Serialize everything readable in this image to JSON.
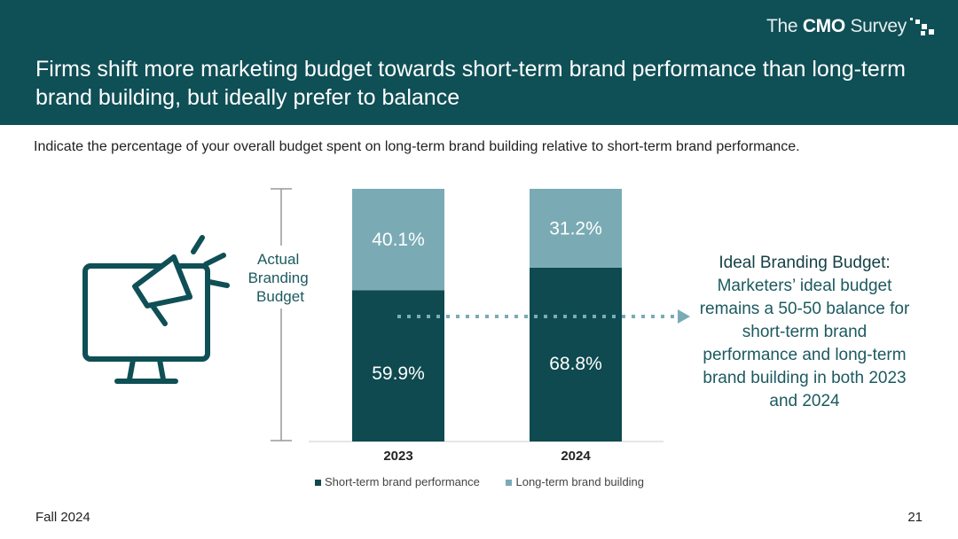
{
  "header": {
    "brand_light_1": "The ",
    "brand_bold": "CMO",
    "brand_light_2": " Survey",
    "title": "Firms shift more marketing budget towards short-term brand performance than long-term brand building, but ideally prefer to balance"
  },
  "subtitle": "Indicate the percentage of your overall budget spent on long-term brand building relative to short-term brand performance.",
  "annotation": {
    "bracket_label": "Actual Branding Budget",
    "ideal_title": "Ideal Branding Budget:",
    "ideal_text": "Marketers’ ideal budget remains a 50-50 balance for short-term brand performance and long-term brand building in both 2023 and 2024"
  },
  "footer": {
    "left": "Fall 2024",
    "page_number": "21"
  },
  "colors": {
    "header_bg": "#0f4f56",
    "short_term": "#0e4a50",
    "long_term": "#7aabb5",
    "arrow": "#7aabb5"
  },
  "chart_data": {
    "type": "bar",
    "stacked": true,
    "categories": [
      "2023",
      "2024"
    ],
    "series": [
      {
        "name": "Short-term brand performance",
        "values": [
          59.9,
          68.8
        ],
        "labels": [
          "59.9%",
          "68.8%"
        ]
      },
      {
        "name": "Long-term brand building",
        "values": [
          40.1,
          31.2
        ],
        "labels": [
          "40.1%",
          "31.2%"
        ]
      }
    ],
    "ylim": [
      0,
      100
    ],
    "grid": false,
    "legend": "bottom"
  }
}
